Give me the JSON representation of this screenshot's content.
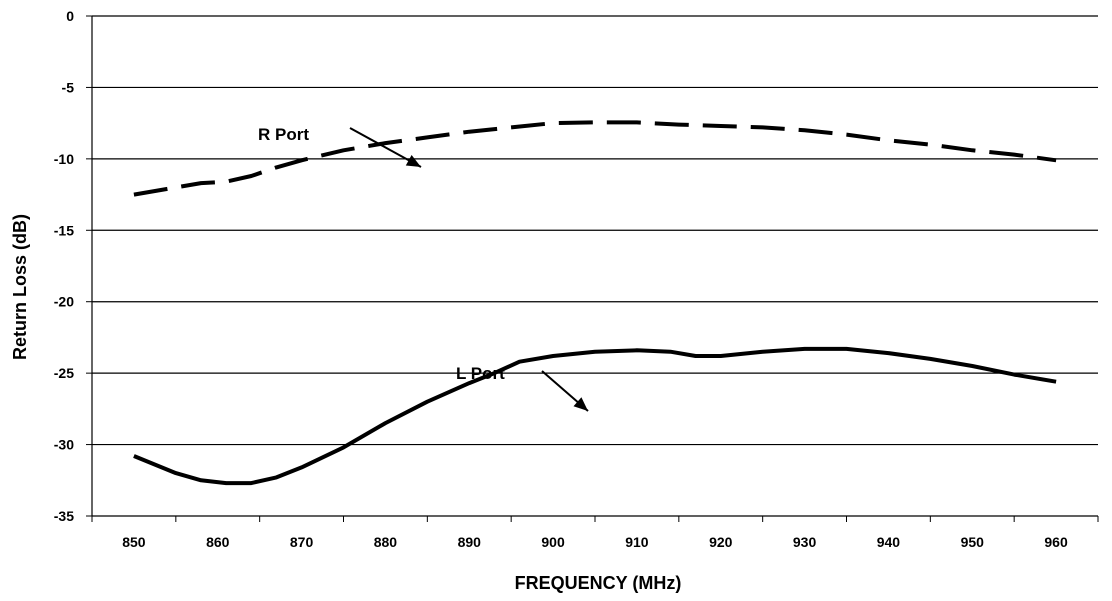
{
  "chart_data": {
    "type": "line",
    "xlabel": "FREQUENCY (MHz)",
    "ylabel": "Return Loss (dB)",
    "xlim": [
      845,
      965
    ],
    "ylim": [
      -35,
      0
    ],
    "x_ticks": [
      "850",
      "860",
      "870",
      "880",
      "890",
      "900",
      "910",
      "920",
      "930",
      "940",
      "950",
      "960"
    ],
    "x_tick_values": [
      850,
      860,
      870,
      880,
      890,
      900,
      910,
      920,
      930,
      940,
      950,
      960
    ],
    "y_ticks": [
      "0",
      "-5",
      "-10",
      "-15",
      "-20",
      "-25",
      "-30",
      "-35"
    ],
    "y_tick_values": [
      0,
      -5,
      -10,
      -15,
      -20,
      -25,
      -30,
      -35
    ],
    "grid": "horizontal",
    "series": [
      {
        "name": "R Port",
        "style": "dashed",
        "x": [
          850,
          855,
          858,
          861,
          864,
          867,
          870,
          875,
          880,
          885,
          890,
          895,
          900,
          905,
          910,
          915,
          920,
          925,
          930,
          935,
          940,
          945,
          950,
          955,
          960
        ],
        "y": [
          -12.5,
          -12.0,
          -11.7,
          -11.6,
          -11.2,
          -10.6,
          -10.1,
          -9.4,
          -8.9,
          -8.5,
          -8.1,
          -7.8,
          -7.5,
          -7.45,
          -7.45,
          -7.6,
          -7.7,
          -7.8,
          -8.0,
          -8.3,
          -8.7,
          -9.0,
          -9.4,
          -9.7,
          -10.1
        ]
      },
      {
        "name": "L Port",
        "style": "solid",
        "x": [
          850,
          855,
          858,
          861,
          864,
          867,
          870,
          875,
          880,
          885,
          890,
          893,
          896,
          900,
          905,
          910,
          914,
          917,
          920,
          925,
          930,
          935,
          940,
          945,
          950,
          955,
          960
        ],
        "y": [
          -30.8,
          -32.0,
          -32.5,
          -32.7,
          -32.7,
          -32.3,
          -31.6,
          -30.2,
          -28.5,
          -27.0,
          -25.7,
          -25.0,
          -24.2,
          -23.8,
          -23.5,
          -23.4,
          -23.5,
          -23.8,
          -23.8,
          -23.5,
          -23.3,
          -23.3,
          -23.6,
          -24.0,
          -24.5,
          -25.1,
          -25.6
        ]
      }
    ],
    "annotations": [
      {
        "text": "R Port",
        "target": "R Port"
      },
      {
        "text": "L Port",
        "target": "L Port"
      }
    ]
  }
}
